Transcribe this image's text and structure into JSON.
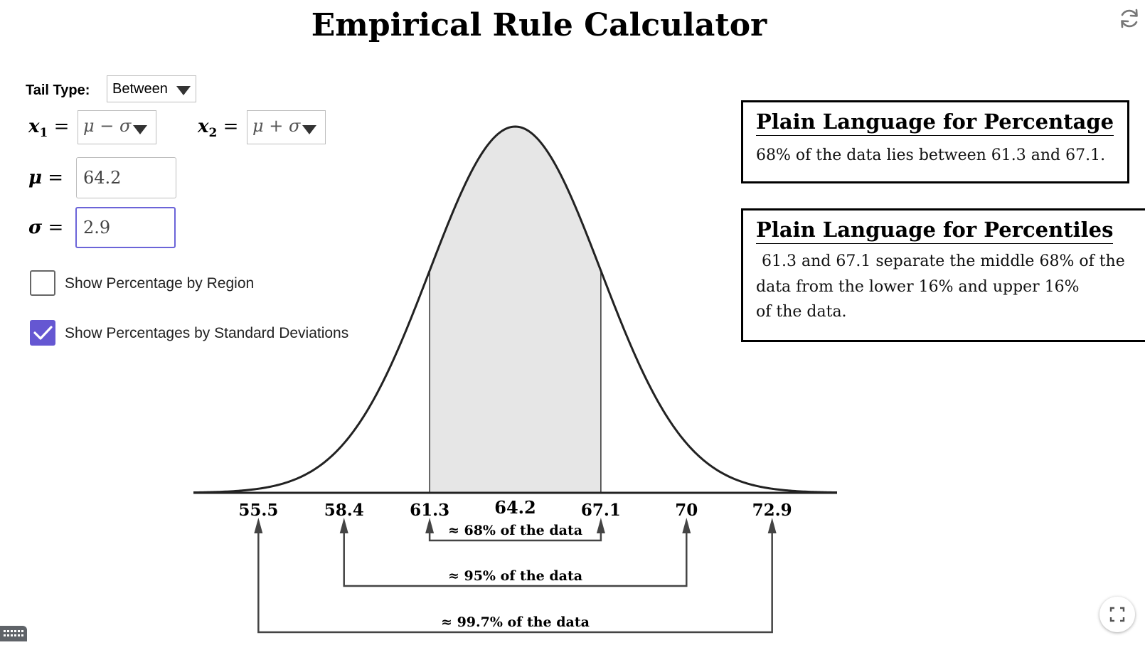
{
  "title": "Empirical Rule Calculator",
  "controls": {
    "tail_type_label": "Tail Type:",
    "tail_type_value": "Between",
    "x1_label": "x",
    "x1_sub": "1",
    "x1_value": "μ − σ",
    "x2_label": "x",
    "x2_sub": "2",
    "x2_value": "μ + σ",
    "mu_label": "μ",
    "mu_value": "64.2",
    "sigma_label": "σ",
    "sigma_value": "2.9",
    "equals": "=",
    "show_region_label": "Show Percentage by Region",
    "show_region_checked": false,
    "show_sd_label": "Show Percentages by Standard Deviations",
    "show_sd_checked": true
  },
  "percentage_box": {
    "title": "Plain Language for Percentage",
    "text": "68% of the data lies between 61.3 and 67.1."
  },
  "percentiles_box": {
    "title": "Plain Language for Percentiles",
    "lines": [
      "61.3 and 67.1 separate the middle 68% of the",
      "data from the lower 16% and upper 16%",
      "of the data."
    ]
  },
  "chart_data": {
    "type": "area",
    "distribution": "normal",
    "mean": 64.2,
    "sd": 2.9,
    "shaded_between": [
      61.3,
      67.1
    ],
    "x_ticks": [
      55.5,
      58.4,
      61.3,
      64.2,
      67.1,
      70,
      72.9
    ],
    "x_tick_labels": [
      "55.5",
      "58.4",
      "61.3",
      "64.2",
      "67.1",
      "70",
      "72.9"
    ],
    "xlim": [
      53.3,
      75.1
    ],
    "shade_color": "#e6e6e6",
    "curve_color": "#222222",
    "ranges": [
      {
        "from": 61.3,
        "to": 67.1,
        "label": "≈ 68% of the data"
      },
      {
        "from": 58.4,
        "to": 70,
        "label": "≈ 95% of the data"
      },
      {
        "from": 55.5,
        "to": 72.9,
        "label": "≈ 99.7% of the data"
      }
    ]
  },
  "colors": {
    "accent": "#6557d2",
    "border": "#bdbdbd"
  },
  "icons": {
    "refresh": "refresh-icon",
    "fullscreen": "fullscreen-icon",
    "keyboard": "keyboard-icon"
  }
}
